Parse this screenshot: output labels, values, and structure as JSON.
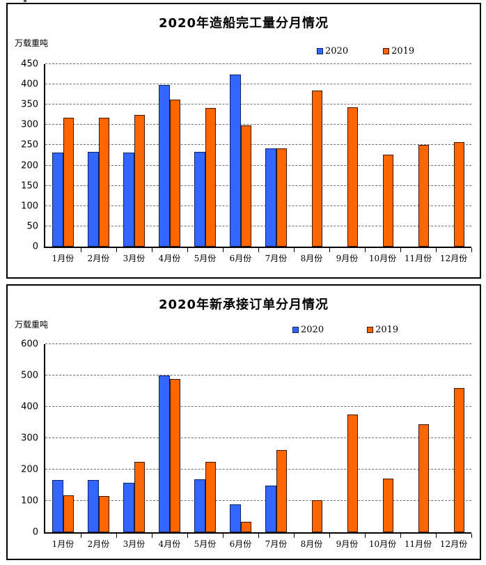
{
  "page": {
    "background": "#ffffff",
    "panel_border": "#000000"
  },
  "chart_data": [
    {
      "type": "bar",
      "title": "2020年造船完工量分月情况",
      "unit": "万载重吨",
      "categories": [
        "1月份",
        "2月份",
        "3月份",
        "4月份",
        "5月份",
        "6月份",
        "7月份",
        "8月份",
        "9月份",
        "10月份",
        "11月份",
        "12月份"
      ],
      "series": [
        {
          "name": "2020",
          "color": "#3366FF",
          "border": "#0b2161",
          "values": [
            232,
            234,
            232,
            399,
            234,
            424,
            243,
            null,
            null,
            null,
            null,
            null
          ]
        },
        {
          "name": "2019",
          "color": "#FF6600",
          "border": "#3f1505",
          "values": [
            317,
            317,
            325,
            363,
            341,
            299,
            243,
            384,
            343,
            227,
            251,
            257
          ]
        }
      ],
      "ylim": [
        0,
        450
      ],
      "ytick": 50,
      "grid": "dashed-horizontal",
      "legend_position": "top-right"
    },
    {
      "type": "bar",
      "title": "2020年新承接订单分月情况",
      "unit": "万载重吨",
      "categories": [
        "1月份",
        "2月份",
        "3月份",
        "4月份",
        "5月份",
        "6月份",
        "7月份",
        "8月份",
        "9月份",
        "10月份",
        "11月份",
        "12月份"
      ],
      "series": [
        {
          "name": "2020",
          "color": "#3366FF",
          "border": "#0b2161",
          "values": [
            167,
            166,
            157,
            500,
            169,
            89,
            150,
            null,
            null,
            null,
            null,
            null
          ]
        },
        {
          "name": "2019",
          "color": "#FF6600",
          "border": "#3f1505",
          "values": [
            117,
            116,
            225,
            490,
            225,
            33,
            262,
            102,
            375,
            172,
            345,
            460
          ]
        }
      ],
      "ylim": [
        0,
        600
      ],
      "ytick": 100,
      "grid": "dashed-horizontal",
      "legend_position": "top-right"
    }
  ]
}
